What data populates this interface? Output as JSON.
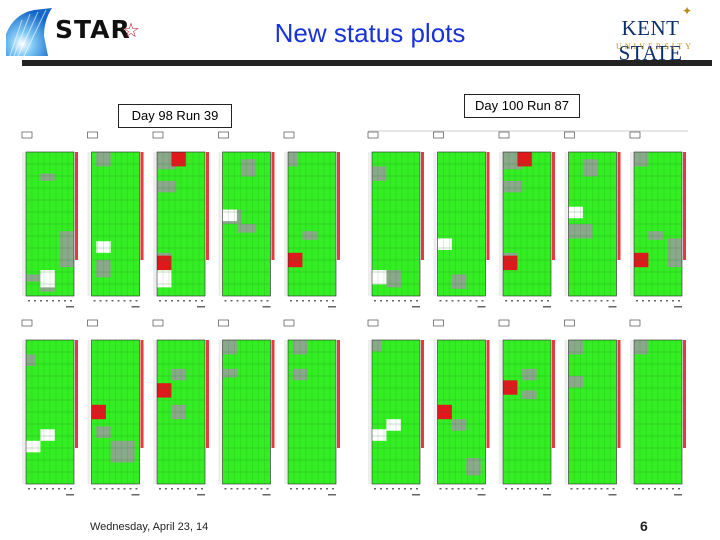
{
  "header": {
    "title": "New status plots",
    "logo_left_text": "STAR",
    "logo_left_mark": "☆",
    "logo_right_name": "KENT STATE",
    "logo_right_sub": "UNIVERSITY",
    "logo_right_mark": "✦"
  },
  "panels": [
    {
      "label": "Day 98 Run 39",
      "rows": [
        [
          {
            "greys": [
              [
                0.3,
                0.15,
                0.3,
                0.05
              ],
              [
                0.3,
                0.85,
                0.3,
                0.12
              ],
              [
                0.7,
                0.55,
                0.3,
                0.25
              ],
              [
                0.0,
                0.85,
                0.3,
                0.05
              ]
            ],
            "whites": [
              [
                0.3,
                0.82,
                0.3,
                0.12
              ]
            ],
            "reds": []
          },
          {
            "greys": [
              [
                0.1,
                0.0,
                0.3,
                0.1
              ],
              [
                0.1,
                0.75,
                0.3,
                0.12
              ]
            ],
            "whites": [
              [
                0.1,
                0.62,
                0.3,
                0.08
              ]
            ],
            "reds": []
          },
          {
            "greys": [
              [
                0.0,
                0.0,
                0.4,
                0.12
              ],
              [
                0.0,
                0.2,
                0.4,
                0.08
              ],
              [
                0.0,
                0.7,
                0.3,
                0.1
              ]
            ],
            "whites": [
              [
                0.0,
                0.82,
                0.3,
                0.12
              ]
            ],
            "reds": [
              [
                0.3,
                0.0,
                0.3,
                0.1
              ],
              [
                0.0,
                0.72,
                0.3,
                0.1
              ]
            ]
          },
          {
            "greys": [
              [
                0.4,
                0.05,
                0.3,
                0.12
              ],
              [
                0.0,
                0.4,
                0.4,
                0.1
              ],
              [
                0.3,
                0.5,
                0.4,
                0.06
              ]
            ],
            "whites": [
              [
                0.0,
                0.4,
                0.3,
                0.08
              ]
            ],
            "reds": []
          },
          {
            "greys": [
              [
                0.0,
                0.0,
                0.2,
                0.1
              ],
              [
                0.3,
                0.55,
                0.3,
                0.06
              ]
            ],
            "whites": [],
            "reds": [
              [
                0.0,
                0.7,
                0.3,
                0.1
              ]
            ]
          }
        ],
        [
          {
            "greys": [
              [
                0.0,
                0.1,
                0.2,
                0.08
              ]
            ],
            "whites": [
              [
                0.0,
                0.7,
                0.3,
                0.08
              ],
              [
                0.3,
                0.62,
                0.3,
                0.08
              ]
            ],
            "reds": []
          },
          {
            "greys": [
              [
                0.4,
                0.7,
                0.5,
                0.15
              ],
              [
                0.1,
                0.6,
                0.3,
                0.08
              ]
            ],
            "whites": [],
            "reds": [
              [
                0.0,
                0.45,
                0.3,
                0.1
              ]
            ]
          },
          {
            "greys": [
              [
                0.3,
                0.2,
                0.3,
                0.08
              ],
              [
                0.3,
                0.45,
                0.3,
                0.1
              ]
            ],
            "whites": [],
            "reds": [
              [
                0.0,
                0.3,
                0.3,
                0.1
              ]
            ]
          },
          {
            "greys": [
              [
                0.0,
                0.0,
                0.3,
                0.1
              ],
              [
                0.0,
                0.2,
                0.3,
                0.06
              ]
            ],
            "whites": [],
            "reds": []
          },
          {
            "greys": [
              [
                0.1,
                0.0,
                0.3,
                0.1
              ],
              [
                0.1,
                0.2,
                0.3,
                0.08
              ]
            ],
            "whites": [],
            "reds": []
          }
        ]
      ]
    },
    {
      "label": "Day 100 Run 87",
      "rows": [
        [
          {
            "greys": [
              [
                0.0,
                0.1,
                0.3,
                0.1
              ],
              [
                0.3,
                0.82,
                0.3,
                0.12
              ]
            ],
            "whites": [
              [
                0.0,
                0.82,
                0.3,
                0.1
              ]
            ],
            "reds": []
          },
          {
            "greys": [
              [
                0.3,
                0.85,
                0.3,
                0.1
              ]
            ],
            "whites": [
              [
                0.0,
                0.6,
                0.3,
                0.08
              ]
            ],
            "reds": []
          },
          {
            "greys": [
              [
                0.0,
                0.0,
                0.4,
                0.12
              ],
              [
                0.0,
                0.2,
                0.4,
                0.08
              ],
              [
                0.0,
                0.7,
                0.3,
                0.1
              ]
            ],
            "whites": [],
            "reds": [
              [
                0.3,
                0.0,
                0.3,
                0.1
              ],
              [
                0.0,
                0.72,
                0.3,
                0.1
              ]
            ]
          },
          {
            "greys": [
              [
                0.3,
                0.05,
                0.3,
                0.12
              ],
              [
                0.0,
                0.5,
                0.5,
                0.1
              ]
            ],
            "whites": [
              [
                0.0,
                0.38,
                0.3,
                0.08
              ]
            ],
            "reds": []
          },
          {
            "greys": [
              [
                0.0,
                0.0,
                0.3,
                0.1
              ],
              [
                0.3,
                0.55,
                0.3,
                0.06
              ],
              [
                0.7,
                0.6,
                0.3,
                0.2
              ]
            ],
            "whites": [],
            "reds": [
              [
                0.0,
                0.7,
                0.3,
                0.1
              ]
            ]
          }
        ],
        [
          {
            "greys": [
              [
                0.0,
                0.0,
                0.2,
                0.08
              ]
            ],
            "whites": [
              [
                0.0,
                0.62,
                0.3,
                0.08
              ],
              [
                0.3,
                0.55,
                0.3,
                0.08
              ]
            ],
            "reds": []
          },
          {
            "greys": [
              [
                0.6,
                0.82,
                0.3,
                0.12
              ],
              [
                0.3,
                0.55,
                0.3,
                0.08
              ]
            ],
            "whites": [],
            "reds": [
              [
                0.0,
                0.45,
                0.3,
                0.1
              ]
            ]
          },
          {
            "greys": [
              [
                0.4,
                0.2,
                0.3,
                0.08
              ],
              [
                0.4,
                0.35,
                0.3,
                0.06
              ]
            ],
            "whites": [],
            "reds": [
              [
                0.0,
                0.28,
                0.3,
                0.1
              ]
            ]
          },
          {
            "greys": [
              [
                0.0,
                0.0,
                0.3,
                0.1
              ],
              [
                0.0,
                0.25,
                0.3,
                0.08
              ]
            ],
            "whites": [],
            "reds": []
          },
          {
            "greys": [
              [
                0.0,
                0.0,
                0.3,
                0.1
              ]
            ],
            "whites": [],
            "reds": []
          }
        ]
      ]
    }
  ],
  "colors": {
    "green": "#33ee22",
    "grey": "#8aa88a",
    "red": "#e2171c",
    "white": "#ffffff",
    "grid": "#2c7a2c"
  },
  "footer": {
    "date": "Wednesday, April 23, 14",
    "page": "6"
  }
}
